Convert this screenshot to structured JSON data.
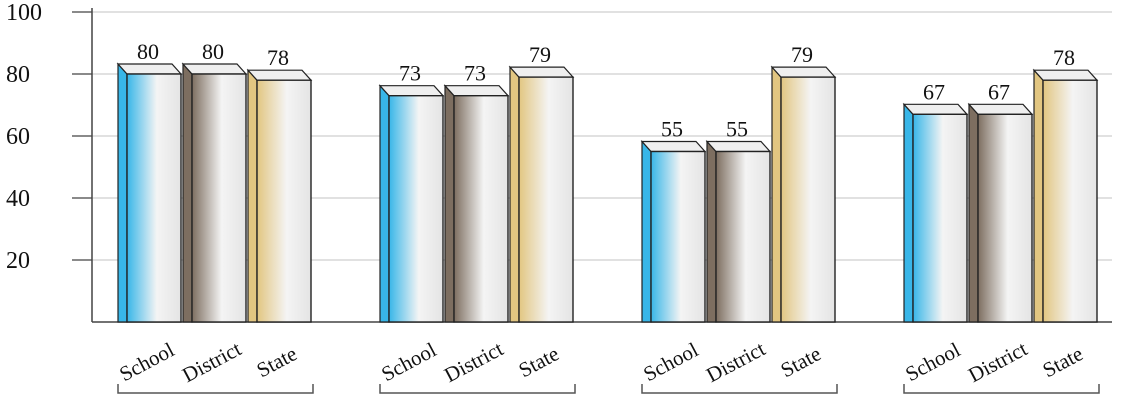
{
  "chart_data": {
    "type": "bar",
    "style": "3d-bars",
    "grid": true,
    "ylim": [
      0,
      100
    ],
    "yticks": [
      20,
      40,
      60,
      80,
      100
    ],
    "series_names": [
      "School",
      "District",
      "State"
    ],
    "colors": {
      "School": "#38b6e8",
      "District": "#7d6e60",
      "State": "#e2c681"
    },
    "groups": [
      {
        "values": [
          80,
          80,
          78
        ],
        "categories": [
          "School",
          "District",
          "State"
        ]
      },
      {
        "values": [
          73,
          73,
          79
        ],
        "categories": [
          "School",
          "District",
          "State"
        ]
      },
      {
        "values": [
          55,
          55,
          79
        ],
        "categories": [
          "School",
          "District",
          "State"
        ]
      },
      {
        "values": [
          67,
          67,
          78
        ],
        "categories": [
          "School",
          "District",
          "State"
        ]
      }
    ]
  }
}
